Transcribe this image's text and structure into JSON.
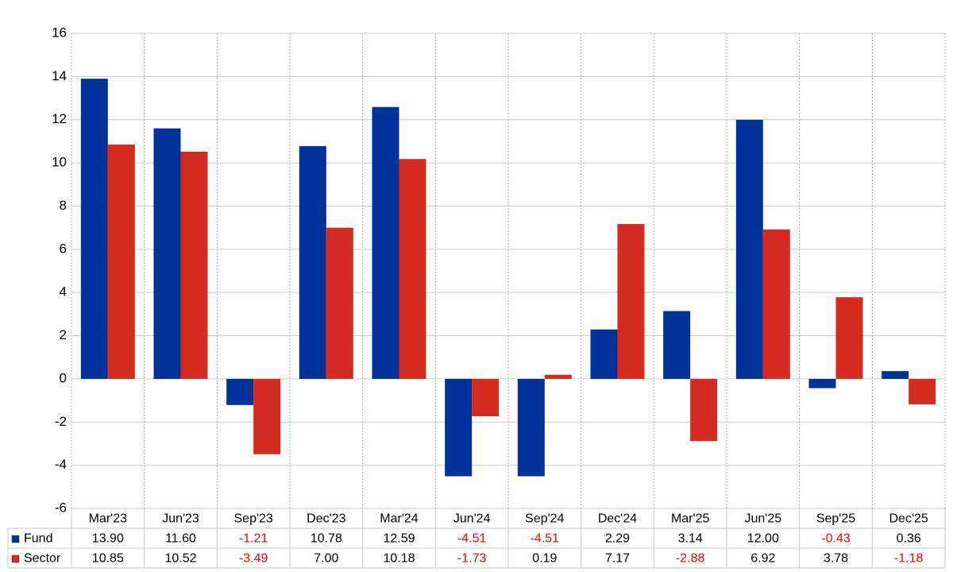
{
  "chart_data": {
    "type": "bar",
    "categories": [
      "Mar'23",
      "Jun'23",
      "Sep'23",
      "Dec'23",
      "Mar'24",
      "Jun'24",
      "Sep'24",
      "Dec'24",
      "Mar'25",
      "Jun'25",
      "Sep'25",
      "Dec'25"
    ],
    "series": [
      {
        "name": "Fund",
        "color": "#003399",
        "values": [
          13.9,
          11.6,
          -1.21,
          10.78,
          12.59,
          -4.51,
          -4.51,
          2.29,
          3.14,
          12.0,
          -0.43,
          0.36
        ],
        "value_labels": [
          "13.90",
          "11.60",
          "-1.21",
          "10.78",
          "12.59",
          "-4.51",
          "-4.51",
          "2.29",
          "3.14",
          "12.00",
          "-0.43",
          "0.36"
        ]
      },
      {
        "name": "Sector",
        "color": "#d52b1e",
        "values": [
          10.85,
          10.52,
          -3.49,
          7.0,
          10.18,
          -1.73,
          0.19,
          7.17,
          -2.88,
          6.92,
          3.78,
          -1.18
        ],
        "value_labels": [
          "10.85",
          "10.52",
          "-3.49",
          "7.00",
          "10.18",
          "-1.73",
          "0.19",
          "7.17",
          "-2.88",
          "6.92",
          "3.78",
          "-1.18"
        ]
      }
    ],
    "ylim": [
      -6,
      16
    ],
    "yticks": [
      -6,
      -4,
      -2,
      0,
      2,
      4,
      6,
      8,
      10,
      12,
      14,
      16
    ],
    "grid": true,
    "negative_color": "#ff0000"
  }
}
